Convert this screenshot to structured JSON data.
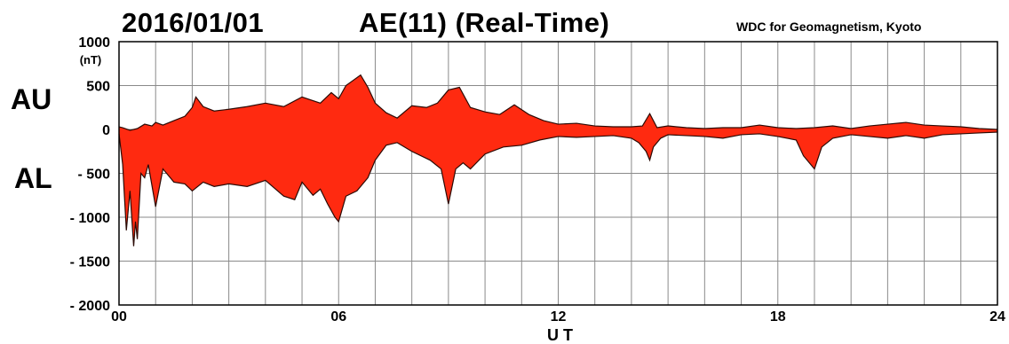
{
  "header": {
    "date": "2016/01/01",
    "title": "AE(11) (Real-Time)",
    "source": "WDC for Geomagnetism, Kyoto"
  },
  "labels": {
    "au": "AU",
    "al": "AL",
    "unit": "(nT)"
  },
  "colors": {
    "fill": "#ff2a10",
    "line": "#2a0a05",
    "grid": "#8a8a8a"
  },
  "chart_data": {
    "type": "area",
    "title": "AE(11) (Real-Time)",
    "xlabel": "U T",
    "ylabel": "(nT)",
    "xlim": [
      0,
      24
    ],
    "ylim": [
      -2000,
      1000
    ],
    "x_ticks": [
      0,
      6,
      12,
      18,
      24
    ],
    "x_tick_labels": [
      "00",
      "06",
      "12",
      "18",
      "24"
    ],
    "y_ticks": [
      1000,
      500,
      0,
      -500,
      -1000,
      -1500,
      -2000
    ],
    "y_tick_labels": [
      "1000",
      "500",
      "0",
      "- 500",
      "- 1000",
      "- 1500",
      "- 2000"
    ],
    "grid": true,
    "series": [
      {
        "name": "AU",
        "x": [
          0,
          0.1,
          0.3,
          0.5,
          0.7,
          0.9,
          1.0,
          1.2,
          1.5,
          1.8,
          2.0,
          2.1,
          2.3,
          2.6,
          3.0,
          3.5,
          4.0,
          4.5,
          5.0,
          5.5,
          5.8,
          6.0,
          6.2,
          6.4,
          6.6,
          6.8,
          7.0,
          7.3,
          7.6,
          8.0,
          8.4,
          8.7,
          9.0,
          9.3,
          9.6,
          10.0,
          10.4,
          10.8,
          11.2,
          11.6,
          12.0,
          12.5,
          13.0,
          13.5,
          14.0,
          14.3,
          14.5,
          14.7,
          15.0,
          15.5,
          16.0,
          16.5,
          17.0,
          17.5,
          18.0,
          18.5,
          19.0,
          19.5,
          20.0,
          20.5,
          21.0,
          21.5,
          22.0,
          22.5,
          23.0,
          23.5,
          24.0
        ],
        "values": [
          30,
          20,
          -10,
          10,
          60,
          40,
          80,
          50,
          100,
          150,
          250,
          370,
          260,
          210,
          230,
          260,
          300,
          260,
          370,
          300,
          420,
          350,
          500,
          560,
          620,
          480,
          300,
          190,
          130,
          270,
          250,
          300,
          450,
          480,
          250,
          200,
          170,
          280,
          170,
          100,
          60,
          70,
          40,
          30,
          30,
          40,
          180,
          20,
          40,
          20,
          10,
          20,
          20,
          50,
          20,
          10,
          20,
          40,
          10,
          40,
          60,
          80,
          50,
          40,
          30,
          10,
          0
        ]
      },
      {
        "name": "AL",
        "x": [
          0,
          0.1,
          0.2,
          0.3,
          0.4,
          0.45,
          0.5,
          0.6,
          0.7,
          0.8,
          1.0,
          1.2,
          1.5,
          1.8,
          2.0,
          2.3,
          2.6,
          3.0,
          3.5,
          4.0,
          4.5,
          4.8,
          5.0,
          5.3,
          5.5,
          5.7,
          5.9,
          6.0,
          6.2,
          6.5,
          6.8,
          7.0,
          7.3,
          7.6,
          8.0,
          8.5,
          8.8,
          9.0,
          9.2,
          9.4,
          9.6,
          10.0,
          10.5,
          11.0,
          11.5,
          12.0,
          12.5,
          13.0,
          13.5,
          14.0,
          14.2,
          14.4,
          14.5,
          14.6,
          14.8,
          15.0,
          15.5,
          16.0,
          16.5,
          17.0,
          17.5,
          18.0,
          18.5,
          18.7,
          19.0,
          19.2,
          19.5,
          20.0,
          20.5,
          21.0,
          21.5,
          22.0,
          22.5,
          23.0,
          23.5,
          24.0
        ],
        "values": [
          -50,
          -400,
          -1150,
          -700,
          -1330,
          -1050,
          -1250,
          -500,
          -550,
          -400,
          -880,
          -450,
          -600,
          -620,
          -700,
          -600,
          -650,
          -620,
          -650,
          -580,
          -760,
          -800,
          -600,
          -750,
          -680,
          -850,
          -1000,
          -1050,
          -760,
          -700,
          -550,
          -350,
          -180,
          -150,
          -250,
          -350,
          -450,
          -850,
          -450,
          -380,
          -450,
          -280,
          -200,
          -180,
          -120,
          -80,
          -90,
          -80,
          -70,
          -100,
          -150,
          -250,
          -350,
          -200,
          -100,
          -60,
          -70,
          -80,
          -100,
          -60,
          -50,
          -80,
          -120,
          -300,
          -450,
          -200,
          -100,
          -60,
          -80,
          -100,
          -70,
          -100,
          -60,
          -50,
          -40,
          -30
        ]
      }
    ]
  }
}
